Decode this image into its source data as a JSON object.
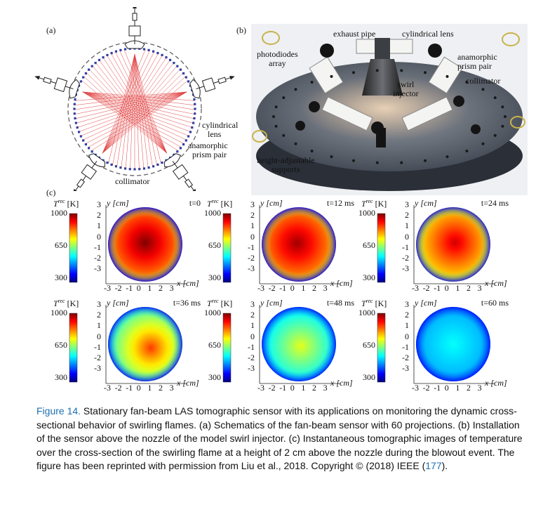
{
  "panel_labels": {
    "a": "(a)",
    "b": "(b)",
    "c": "(c)"
  },
  "panel_a": {
    "labels": {
      "cylindrical_lens": "cylindrical lens",
      "anamorphic_prism_pair": "anamorphic prism pair",
      "collimator": "collimator"
    },
    "cylindrical_lens_lines": [
      "cylindrical",
      "lens"
    ],
    "prism_lines": [
      "anamorphic",
      "prism pair"
    ]
  },
  "panel_b": {
    "labels": {
      "exhaust_pipe": "exhaust pipe",
      "cylindrical_lens": "cylindrical lens",
      "photodiodes_array_1": "photodiodes",
      "photodiodes_array_2": "array",
      "anamorphic_1": "anamorphic",
      "anamorphic_2": "prism pair",
      "collimator": "collimator",
      "swirl_1": "swirl",
      "swirl_2": "injector",
      "height_1": "height-adjustable",
      "height_2": "supports"
    }
  },
  "panel_c": {
    "colorbar_title_sup": "rec",
    "colorbar_title_T": "T",
    "colorbar_title_unit": "[K]",
    "colorbar_ticks": [
      "1000",
      "650",
      "300"
    ],
    "y_axis_label": "y [cm]",
    "x_axis_label": "x [cm]",
    "y_ticks": [
      "3",
      "2",
      "1",
      "0",
      "-1",
      "-2",
      "-3"
    ],
    "x_ticks": [
      "-3",
      "-2",
      "-1",
      "0",
      "1",
      "2",
      "3"
    ],
    "frames": [
      {
        "time": "t=0"
      },
      {
        "time": "t=12 ms"
      },
      {
        "time": "t=24 ms"
      },
      {
        "time": "t=36 ms"
      },
      {
        "time": "t=48 ms"
      },
      {
        "time": "t=60 ms"
      }
    ]
  },
  "caption": {
    "figure_label": "Figure 14.",
    "text": " Stationary fan-beam LAS tomographic sensor with its applications on monitoring the dynamic cross-sectional behavior of swirling flames. (a) Schematics of the fan-beam sensor with 60 projections. (b) Installation of the sensor above the nozzle of the model swirl injector. (c) Instantaneous tomographic images of temperature over the cross-section of the swirling flame at a height of 2 cm above the nozzle during the blowout event. The figure has been reprinted with permission from Liu et al., 2018. Copyright © (2018) IEEE (",
    "ref": "177",
    "end": ")."
  }
}
